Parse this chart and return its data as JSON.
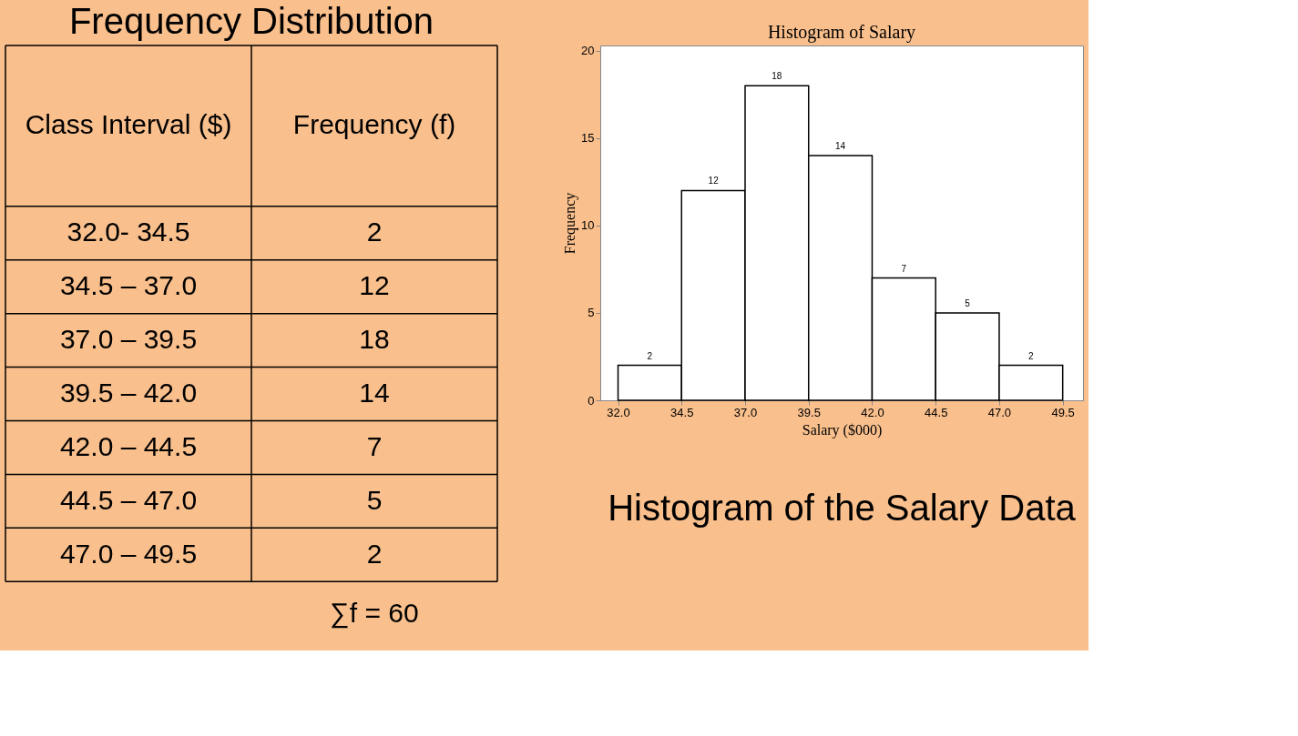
{
  "chart_data": [
    {
      "type": "other",
      "title": "Frequency Distribution",
      "annotations": [
        "Class Interval ($)",
        "Frequency (f)",
        "32.0- 34.5",
        "2",
        "34.5 – 37.0",
        "12",
        "37.0 – 39.5",
        "18",
        "39.5 – 42.0",
        "14",
        "42.0 – 44.5",
        "7",
        "44.5 – 47.0",
        "5",
        "47.0 – 49.5",
        "2",
        "∑f = 60"
      ]
    },
    {
      "type": "histogram",
      "title": "Histogram of Salary",
      "xlabel": "Salary ($000)",
      "ylabel": "Frequency",
      "bins": [
        32.0,
        34.5,
        37.0,
        39.5,
        42.0,
        44.5,
        47.0,
        49.5
      ],
      "values": [
        2,
        12,
        18,
        14,
        7,
        5,
        2
      ],
      "color": "#ffffff",
      "xlim": [
        31.3,
        50.3
      ],
      "ylim": [
        0,
        20.3
      ],
      "xticks": [
        {
          "value": 32,
          "label": "32.0"
        },
        {
          "value": 34.5,
          "label": "34.5"
        },
        {
          "value": 37,
          "label": "37.0"
        },
        {
          "value": 39.5,
          "label": "39.5"
        },
        {
          "value": 42,
          "label": "42.0"
        },
        {
          "value": 44.5,
          "label": "44.5"
        },
        {
          "value": 47,
          "label": "47.0"
        },
        {
          "value": 49.5,
          "label": "49.5"
        }
      ],
      "yticks": [
        0,
        5,
        10,
        15,
        20
      ],
      "data_labels": true,
      "grid": false,
      "annotations": [
        "Histogram of the Salary Data"
      ]
    }
  ]
}
